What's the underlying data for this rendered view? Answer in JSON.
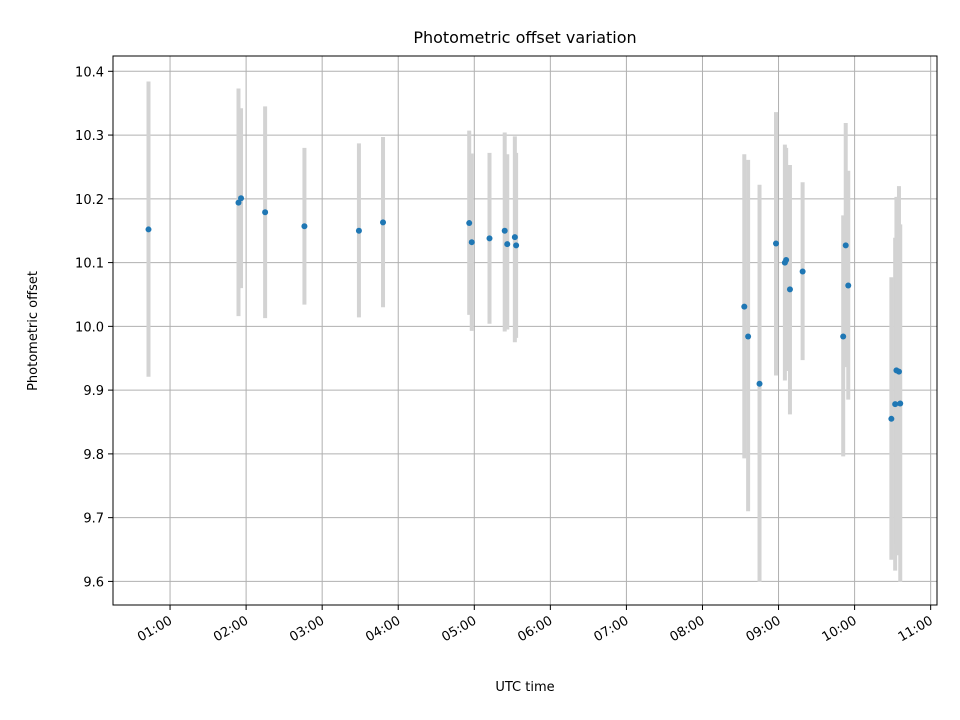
{
  "chart_data": {
    "type": "scatter",
    "title": "Photometric offset variation",
    "xlabel": "UTC time",
    "ylabel": "Photometric offset",
    "grid": true,
    "x_ticks": [
      "01:00",
      "02:00",
      "03:00",
      "04:00",
      "05:00",
      "06:00",
      "07:00",
      "08:00",
      "09:00",
      "10:00",
      "11:00"
    ],
    "y_ticks": [
      "9.6",
      "9.7",
      "9.8",
      "9.9",
      "10.0",
      "10.1",
      "10.2",
      "10.3",
      "10.4"
    ],
    "xlim": [
      "00:15",
      "11:05"
    ],
    "ylim": [
      9.563,
      10.424
    ],
    "colors": {
      "point": "#1f77b4",
      "errorbar": "#d3d3d3",
      "grid": "#b0b0b0"
    },
    "points": [
      {
        "x": "00:43",
        "y": 10.152,
        "y_low": 9.921,
        "y_high": 10.384
      },
      {
        "x": "01:54",
        "y": 10.194,
        "y_low": 10.016,
        "y_high": 10.373
      },
      {
        "x": "01:56",
        "y": 10.201,
        "y_low": 10.06,
        "y_high": 10.342
      },
      {
        "x": "02:15",
        "y": 10.179,
        "y_low": 10.013,
        "y_high": 10.345
      },
      {
        "x": "02:46",
        "y": 10.157,
        "y_low": 10.034,
        "y_high": 10.28
      },
      {
        "x": "03:29",
        "y": 10.15,
        "y_low": 10.014,
        "y_high": 10.287
      },
      {
        "x": "03:48",
        "y": 10.163,
        "y_low": 10.03,
        "y_high": 10.297
      },
      {
        "x": "04:56",
        "y": 10.162,
        "y_low": 10.018,
        "y_high": 10.307
      },
      {
        "x": "04:58",
        "y": 10.132,
        "y_low": 9.993,
        "y_high": 10.271
      },
      {
        "x": "05:12",
        "y": 10.138,
        "y_low": 10.004,
        "y_high": 10.272
      },
      {
        "x": "05:24",
        "y": 10.15,
        "y_low": 9.992,
        "y_high": 10.304
      },
      {
        "x": "05:26",
        "y": 10.129,
        "y_low": 9.995,
        "y_high": 10.27
      },
      {
        "x": "05:32",
        "y": 10.14,
        "y_low": 9.975,
        "y_high": 10.298
      },
      {
        "x": "05:33",
        "y": 10.127,
        "y_low": 9.982,
        "y_high": 10.272
      },
      {
        "x": "08:33",
        "y": 10.031,
        "y_low": 9.793,
        "y_high": 10.27
      },
      {
        "x": "08:36",
        "y": 9.984,
        "y_low": 9.71,
        "y_high": 10.261
      },
      {
        "x": "08:45",
        "y": 9.91,
        "y_low": 9.599,
        "y_high": 10.222
      },
      {
        "x": "08:58",
        "y": 10.13,
        "y_low": 9.923,
        "y_high": 10.336
      },
      {
        "x": "09:05",
        "y": 10.1,
        "y_low": 9.915,
        "y_high": 10.285
      },
      {
        "x": "09:06",
        "y": 10.104,
        "y_low": 9.93,
        "y_high": 10.28
      },
      {
        "x": "09:09",
        "y": 10.058,
        "y_low": 9.862,
        "y_high": 10.253
      },
      {
        "x": "09:19",
        "y": 10.086,
        "y_low": 9.947,
        "y_high": 10.226
      },
      {
        "x": "09:51",
        "y": 9.984,
        "y_low": 9.796,
        "y_high": 10.174
      },
      {
        "x": "09:53",
        "y": 10.127,
        "y_low": 9.936,
        "y_high": 10.319
      },
      {
        "x": "09:55",
        "y": 10.064,
        "y_low": 9.885,
        "y_high": 10.244
      },
      {
        "x": "10:29",
        "y": 9.855,
        "y_low": 9.634,
        "y_high": 10.077
      },
      {
        "x": "10:32",
        "y": 9.878,
        "y_low": 9.617,
        "y_high": 10.139
      },
      {
        "x": "10:33",
        "y": 9.931,
        "y_low": 9.659,
        "y_high": 10.203
      },
      {
        "x": "10:35",
        "y": 9.929,
        "y_low": 9.641,
        "y_high": 10.22
      },
      {
        "x": "10:36",
        "y": 9.879,
        "y_low": 9.599,
        "y_high": 10.16
      }
    ]
  }
}
